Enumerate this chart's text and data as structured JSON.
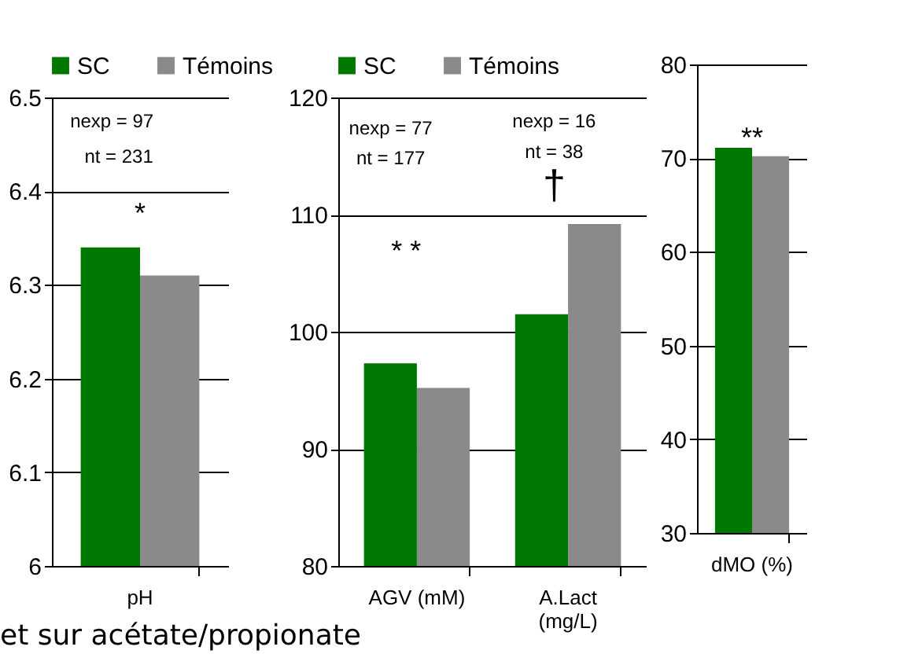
{
  "chart_data": [
    {
      "type": "bar",
      "categories": [
        "pH"
      ],
      "series": [
        {
          "name": "SC",
          "color": "#007800",
          "values": [
            6.34
          ]
        },
        {
          "name": "Témoins",
          "color": "#8a8a8a",
          "values": [
            6.31
          ]
        }
      ],
      "ylim": [
        6,
        6.5
      ],
      "yticks": [
        6,
        6.1,
        6.2,
        6.3,
        6.4,
        6.5
      ],
      "grid": "y",
      "legend": "top",
      "annotations": [
        "nexp = 97",
        "nt = 231",
        "*",
        "et sur acétate/propionate"
      ]
    },
    {
      "type": "bar",
      "categories": [
        "AGV (mM)",
        "A.Lact\n(mg/L)"
      ],
      "series": [
        {
          "name": "SC",
          "color": "#007800",
          "values": [
            97.3,
            101.5
          ]
        },
        {
          "name": "Témoins",
          "color": "#8a8a8a",
          "values": [
            95.2,
            109.2
          ]
        }
      ],
      "ylim": [
        80,
        120
      ],
      "yticks": [
        80,
        90,
        100,
        110,
        120
      ],
      "grid": "y",
      "legend": "top",
      "annotations": [
        "nexp = 77",
        "nt = 177",
        "* *",
        "nexp = 16",
        "nt = 38",
        "†"
      ]
    },
    {
      "type": "bar",
      "categories": [
        "dMO (%)"
      ],
      "series": [
        {
          "color": "#007800",
          "values": [
            71.1
          ]
        },
        {
          "color": "#8a8a8a",
          "values": [
            70.2
          ]
        }
      ],
      "ylim": [
        30,
        80
      ],
      "yticks": [
        30,
        40,
        50,
        60,
        70,
        80
      ],
      "grid": "y",
      "annotations": [
        "**"
      ]
    }
  ]
}
